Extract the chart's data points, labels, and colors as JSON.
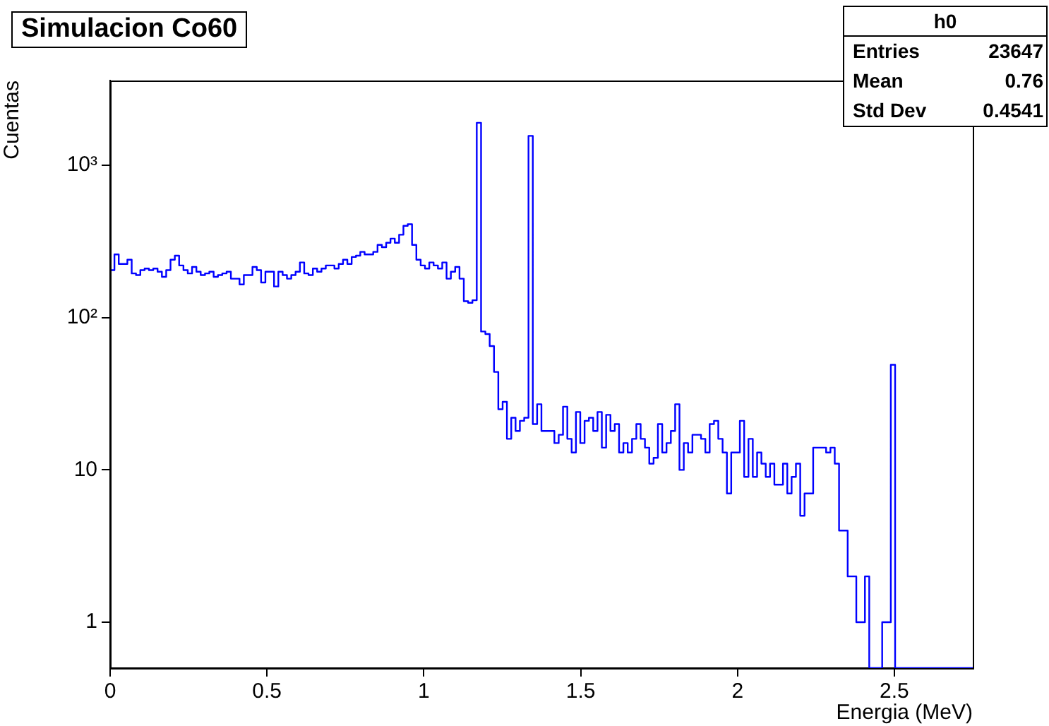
{
  "chart_data": {
    "type": "histogram",
    "title": "Simulacion Co60",
    "xlabel": "Energia (MeV)",
    "ylabel": "Cuentas",
    "bins": [
      0,
      0.01375,
      0.0275,
      0.04125,
      0.055,
      0.06875,
      0.0825,
      0.09625,
      0.11,
      0.12375,
      0.1375,
      0.15125,
      0.165,
      0.17875,
      0.1925,
      0.20625,
      0.22,
      0.23375,
      0.2475,
      0.26125,
      0.275,
      0.28875,
      0.3025,
      0.31625,
      0.33,
      0.34375,
      0.3575,
      0.37125,
      0.385,
      0.39875,
      0.4125,
      0.42625,
      0.44,
      0.45375,
      0.4675,
      0.48125,
      0.495,
      0.50875,
      0.5225,
      0.53625,
      0.55,
      0.56375,
      0.5775,
      0.59125,
      0.605,
      0.61875,
      0.6325,
      0.64625,
      0.66,
      0.67375,
      0.6875,
      0.70125,
      0.715,
      0.72875,
      0.7425,
      0.75625,
      0.77,
      0.78375,
      0.7975,
      0.81125,
      0.825,
      0.83875,
      0.8525,
      0.86625,
      0.88,
      0.89375,
      0.9075,
      0.92125,
      0.935,
      0.94875,
      0.9625,
      0.97625,
      0.99,
      1.00375,
      1.0175,
      1.03125,
      1.045,
      1.05875,
      1.0725,
      1.08625,
      1.1,
      1.11375,
      1.1275,
      1.14125,
      1.155,
      1.16875,
      1.1825,
      1.19625,
      1.21,
      1.22375,
      1.2375,
      1.25125,
      1.265,
      1.27875,
      1.2925,
      1.30625,
      1.32,
      1.33375,
      1.3475,
      1.36125,
      1.375,
      1.38875,
      1.4025,
      1.41625,
      1.43,
      1.44375,
      1.4575,
      1.47125,
      1.485,
      1.49875,
      1.5125,
      1.52625,
      1.54,
      1.55375,
      1.5675,
      1.58125,
      1.595,
      1.60875,
      1.6225,
      1.63625,
      1.65,
      1.66375,
      1.6775,
      1.69125,
      1.705,
      1.71875,
      1.7325,
      1.74625,
      1.76,
      1.77375,
      1.7875,
      1.80125,
      1.815,
      1.82875,
      1.8425,
      1.85625,
      1.87,
      1.88375,
      1.8975,
      1.91125,
      1.925,
      1.93875,
      1.9525,
      1.96625,
      1.98,
      1.99375,
      2.0075,
      2.02125,
      2.035,
      2.04875,
      2.0625,
      2.07625,
      2.09,
      2.10375,
      2.1175,
      2.13125,
      2.145,
      2.15875,
      2.1725,
      2.18625,
      2.2,
      2.21375,
      2.2275,
      2.24125,
      2.255,
      2.26875,
      2.2825,
      2.29625,
      2.31,
      2.32375,
      2.3375,
      2.35125,
      2.365,
      2.37875,
      2.3925,
      2.40625,
      2.42,
      2.43375,
      2.4475,
      2.46125,
      2.475,
      2.48875,
      2.5025,
      2.51625,
      2.53,
      2.54375,
      2.5575,
      2.57125,
      2.585,
      2.59875,
      2.6125,
      2.62625,
      2.64,
      2.65375,
      2.6675,
      2.68125,
      2.695,
      2.70875,
      2.7225,
      2.73625,
      2.75
    ],
    "values": [
      205,
      260,
      225,
      225,
      240,
      195,
      190,
      205,
      210,
      205,
      210,
      200,
      185,
      205,
      240,
      255,
      220,
      205,
      195,
      215,
      200,
      190,
      195,
      200,
      185,
      190,
      195,
      200,
      180,
      180,
      165,
      190,
      190,
      215,
      205,
      170,
      200,
      200,
      160,
      200,
      190,
      180,
      190,
      200,
      230,
      195,
      190,
      210,
      200,
      210,
      220,
      220,
      210,
      225,
      240,
      225,
      250,
      255,
      270,
      260,
      260,
      270,
      300,
      290,
      310,
      330,
      310,
      350,
      400,
      410,
      300,
      240,
      220,
      210,
      230,
      220,
      210,
      230,
      180,
      200,
      215,
      180,
      128,
      125,
      130,
      1900,
      81,
      78,
      65,
      44,
      25,
      28,
      16,
      22,
      18,
      21,
      22,
      1560,
      20,
      27,
      18,
      18,
      18,
      15,
      17,
      26,
      16,
      13,
      24,
      15,
      21,
      22,
      18,
      24,
      14,
      23,
      18,
      20,
      13,
      15,
      13,
      16,
      20,
      16,
      14,
      11,
      12,
      20,
      13,
      15,
      18,
      27,
      10,
      15,
      13,
      17,
      17,
      16,
      13,
      20,
      21,
      16,
      13,
      7,
      13,
      13,
      21,
      9,
      16,
      9,
      13,
      11,
      9,
      11,
      8,
      8,
      11,
      7,
      9,
      11,
      5,
      7,
      7,
      14,
      14,
      14,
      13,
      14,
      11,
      4,
      4,
      2,
      2,
      1,
      1,
      2,
      null,
      null,
      null,
      1,
      1,
      49,
      null,
      null,
      null,
      null,
      null,
      null,
      null,
      null,
      null,
      null,
      null,
      null,
      null,
      null,
      null,
      null,
      null,
      null
    ],
    "color": "#0000ff",
    "xlim": [
      0,
      2.75
    ],
    "xticks": [
      0,
      0.5,
      1,
      1.5,
      2,
      2.5
    ],
    "log": true,
    "ylim": [
      0.5,
      3600
    ],
    "yticks": [
      1,
      10,
      {
        "value": 100,
        "label": "10²"
      },
      {
        "value": 1000,
        "label": "10³"
      }
    ],
    "grid": false,
    "legend": false,
    "annotations": [
      "h0",
      "Entries",
      "23647",
      "Mean",
      "0.76",
      "Std Dev",
      "0.4541"
    ]
  }
}
